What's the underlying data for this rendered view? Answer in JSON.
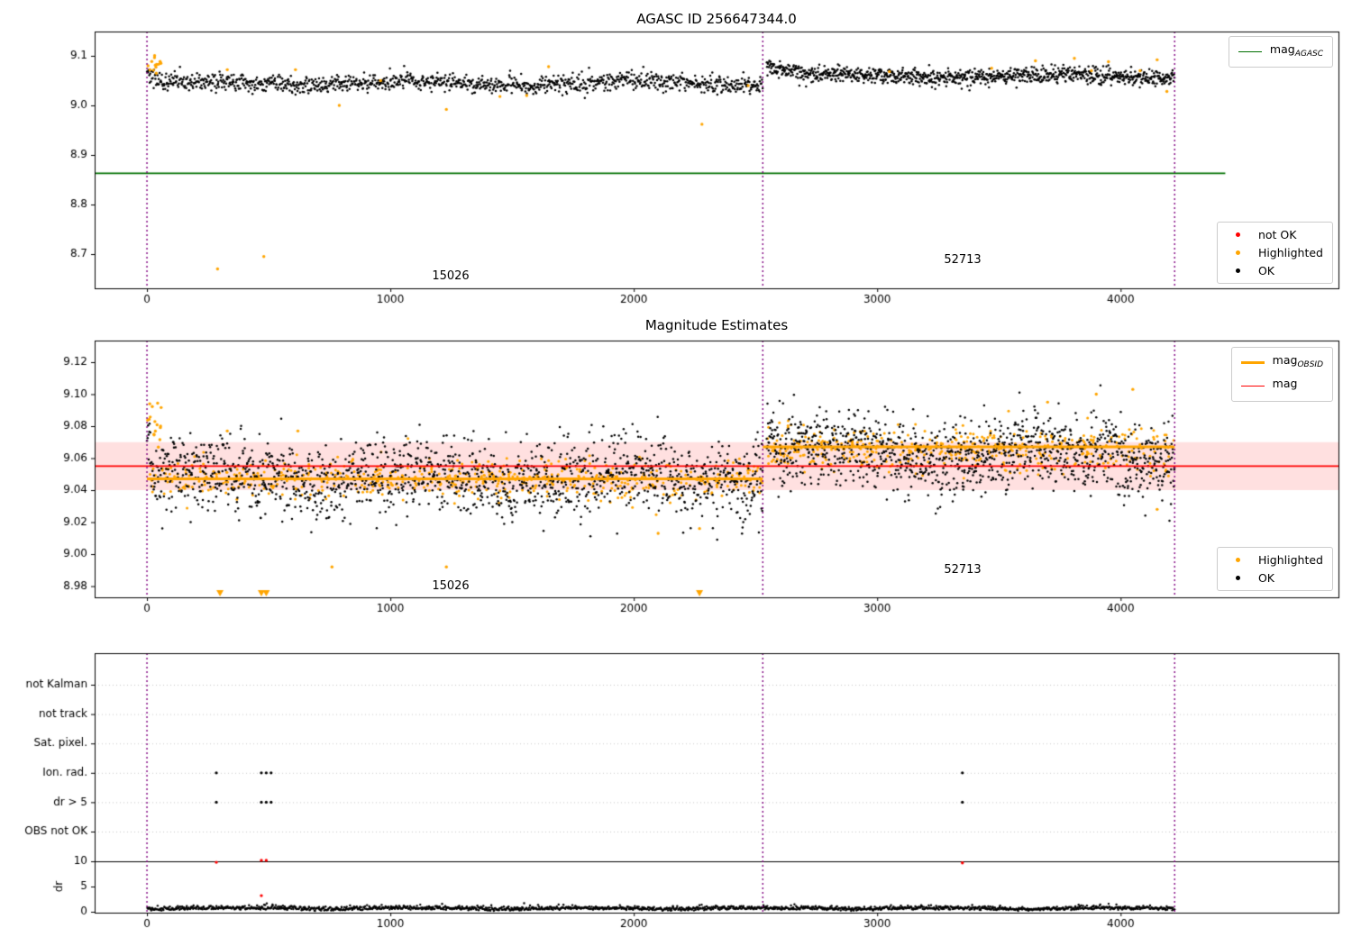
{
  "colors": {
    "ok": "#000000",
    "highlighted": "#ffa500",
    "not_ok": "#ff0000",
    "mag_agasc_line": "#007000",
    "mag_line": "#ff0000",
    "obsid_line": "#ffa500",
    "band_fill": "rgba(255,0,0,0.12)",
    "vline": "#800080",
    "grid": "#c8c8c8"
  },
  "chart_data": [
    {
      "type": "scatter",
      "title": "AGASC ID 256647344.0",
      "xlim": [
        -215,
        4895
      ],
      "ylim": [
        8.631,
        9.149
      ],
      "xticks": [
        0,
        1000,
        2000,
        3000,
        4000
      ],
      "yticks": [
        8.7,
        8.8,
        8.9,
        9.0,
        9.1
      ],
      "ytick_labels": [
        "8.7",
        "8.8",
        "8.9",
        "9.0",
        "9.1"
      ],
      "vlines": [
        0,
        2530,
        4222
      ],
      "hline_mag_agasc": 8.863,
      "hline_span": [
        -215,
        4430
      ],
      "legend_line": {
        "prefix": "mag",
        "sub": "AGASC",
        "position": "upper right"
      },
      "legend_points": [
        {
          "label": "not OK",
          "color_key": "not_ok"
        },
        {
          "label": "Highlighted",
          "color_key": "highlighted"
        },
        {
          "label": "OK",
          "color_key": "ok"
        }
      ],
      "legend_points_position": "lower right",
      "segments": [
        {
          "obsid": "15026",
          "x": [
            0,
            2530
          ],
          "n": 1150,
          "mean": 9.045,
          "std": 0.009,
          "wiggle": 0.004,
          "bump": 0.03,
          "tau": 25
        },
        {
          "obsid": "52713",
          "x": [
            2545,
            4222
          ],
          "n": 950,
          "mean": 9.059,
          "std": 0.008,
          "wiggle": 0.004,
          "bump": 0.028,
          "tau": 80
        }
      ],
      "highlighted_cluster": {
        "x": [
          0,
          60
        ],
        "n": 14,
        "mean": 9.08,
        "std": 0.012
      },
      "highlighted_points": [
        [
          330,
          9.072
        ],
        [
          610,
          9.072
        ],
        [
          790,
          9.0
        ],
        [
          960,
          9.05
        ],
        [
          1230,
          8.992
        ],
        [
          1450,
          9.018
        ],
        [
          1560,
          9.02
        ],
        [
          1650,
          9.078
        ],
        [
          2280,
          8.962
        ],
        [
          2470,
          9.04
        ],
        [
          3050,
          9.068
        ],
        [
          3470,
          9.075
        ],
        [
          3650,
          9.09
        ],
        [
          3810,
          9.095
        ],
        [
          3880,
          9.07
        ],
        [
          3950,
          9.088
        ],
        [
          4080,
          9.07
        ],
        [
          4150,
          9.092
        ],
        [
          4190,
          9.028
        ],
        [
          290,
          8.67
        ],
        [
          480,
          8.695
        ]
      ],
      "not_ok_points": []
    },
    {
      "type": "scatter",
      "title": "Magnitude Estimates",
      "xlim": [
        -215,
        4895
      ],
      "ylim": [
        8.973,
        9.1335
      ],
      "xticks": [
        0,
        1000,
        2000,
        3000,
        4000
      ],
      "yticks": [
        8.98,
        9.0,
        9.02,
        9.04,
        9.06,
        9.08,
        9.1,
        9.12
      ],
      "ytick_labels": [
        "8.98",
        "9.00",
        "9.02",
        "9.04",
        "9.06",
        "9.08",
        "9.10",
        "9.12"
      ],
      "vlines": [
        0,
        2530,
        4222
      ],
      "mag_line": 9.055,
      "mag_band": [
        9.04,
        9.07
      ],
      "obsid_lines": [
        {
          "x": [
            0,
            2530
          ],
          "y": 9.047
        },
        {
          "x": [
            2530,
            4222
          ],
          "y": 9.067
        }
      ],
      "legend_lines": [
        {
          "label_prefix": "mag",
          "label_sub": "OBSID",
          "color_key": "obsid_line"
        },
        {
          "label_prefix": "mag",
          "label_sub": "",
          "color_key": "mag_line"
        }
      ],
      "legend_lines_position": "upper right",
      "legend_points": [
        {
          "label": "Highlighted",
          "color_key": "highlighted"
        },
        {
          "label": "OK",
          "color_key": "ok"
        }
      ],
      "legend_points_position": "lower right",
      "segments": [
        {
          "obsid": "15026",
          "x": [
            0,
            2530
          ],
          "n": 1500,
          "mean": 9.047,
          "std": 0.012,
          "wiggle": 0.003,
          "bump": 0.03,
          "tau": 18
        },
        {
          "obsid": "52713",
          "x": [
            2545,
            4222
          ],
          "n": 1150,
          "mean": 9.062,
          "std": 0.012,
          "wiggle": 0.004,
          "bump": 0.03,
          "tau": 30
        }
      ],
      "highlighted_band": [
        {
          "x": [
            0,
            2530
          ],
          "n": 600,
          "mean": 9.047,
          "std": 0.006
        },
        {
          "x": [
            2545,
            4222
          ],
          "n": 450,
          "mean": 9.066,
          "std": 0.007
        }
      ],
      "highlighted_cluster": {
        "x": [
          0,
          60
        ],
        "n": 16,
        "mean": 9.085,
        "std": 0.01
      },
      "highlighted_points": [
        [
          760,
          8.992
        ],
        [
          1230,
          8.992
        ],
        [
          330,
          9.077
        ],
        [
          620,
          9.077
        ],
        [
          2100,
          9.013
        ],
        [
          2270,
          9.016
        ],
        [
          3700,
          9.095
        ],
        [
          3900,
          9.1
        ],
        [
          4050,
          9.103
        ],
        [
          4150,
          9.028
        ]
      ],
      "clipped_markers": [
        300,
        470,
        490,
        2270
      ]
    },
    {
      "type": "scatter-flags",
      "title": "",
      "xlim": [
        -215,
        4895
      ],
      "xticks": [
        0,
        1000,
        2000,
        3000,
        4000
      ],
      "vlines": [
        0,
        2530,
        4222
      ],
      "categories": [
        "not Kalman",
        "not track",
        "Sat. pixel.",
        "Ion. rad.",
        "dr > 5",
        "OBS not OK"
      ],
      "dr_ylabel": "dr",
      "dr_ticks": [
        10,
        5,
        0
      ],
      "dr_hline": 10,
      "flag_points": {
        "Ion. rad.": [
          285,
          470,
          490,
          510,
          3350
        ],
        "dr > 5": [
          285,
          470,
          490,
          510,
          3350
        ]
      },
      "dr_red_points": [
        [
          285,
          9.8
        ],
        [
          470,
          10.2
        ],
        [
          490,
          10.2
        ],
        [
          3350,
          9.7
        ],
        [
          470,
          3.2
        ]
      ],
      "dr_band": {
        "x": [
          0,
          4222
        ],
        "n": 1700,
        "base": 0.35,
        "std": 0.3
      }
    }
  ]
}
